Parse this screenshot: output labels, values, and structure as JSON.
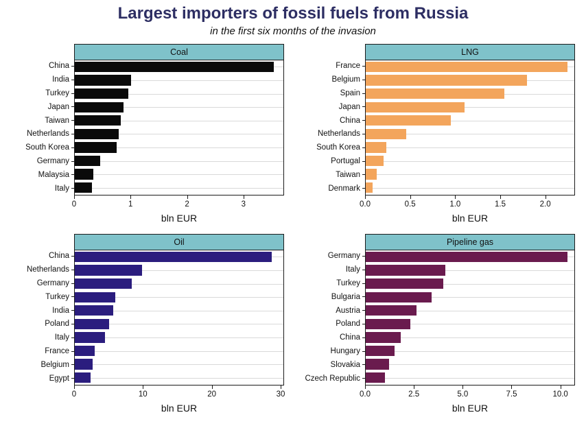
{
  "header": {
    "title": "Largest importers of fossil fuels from Russia",
    "subtitle": "in the first six months of the invasion"
  },
  "colors": {
    "title": "#2d2e63",
    "strip_bg": "#7fc2ca",
    "panel_border": "#1a1a1a",
    "gridline": "#d9d9d9"
  },
  "chart_data": [
    {
      "type": "bar",
      "orientation": "horizontal",
      "title": "Coal",
      "xlabel": "bln EUR",
      "bar_color": "#0a0a0a",
      "categories": [
        "China",
        "India",
        "Turkey",
        "Japan",
        "Taiwan",
        "Netherlands",
        "South Korea",
        "Germany",
        "Malaysia",
        "Italy"
      ],
      "values": [
        3.55,
        1.0,
        0.95,
        0.87,
        0.82,
        0.78,
        0.75,
        0.45,
        0.33,
        0.3
      ],
      "xticks": [
        0,
        1,
        2,
        3
      ],
      "xtick_labels": [
        "0",
        "1",
        "2",
        "3"
      ],
      "xlim": [
        0,
        3.72
      ],
      "grid": "horizontal",
      "legend": "none"
    },
    {
      "type": "bar",
      "orientation": "horizontal",
      "title": "LNG",
      "xlabel": "bln EUR",
      "bar_color": "#f3a55c",
      "categories": [
        "France",
        "Belgium",
        "Spain",
        "Japan",
        "China",
        "Netherlands",
        "South Korea",
        "Portugal",
        "Taiwan",
        "Denmark"
      ],
      "values": [
        2.25,
        1.8,
        1.55,
        1.1,
        0.95,
        0.45,
        0.23,
        0.2,
        0.12,
        0.08
      ],
      "xticks": [
        0,
        0.5,
        1.0,
        1.5,
        2.0
      ],
      "xtick_labels": [
        "0.0",
        "0.5",
        "1.0",
        "1.5",
        "2.0"
      ],
      "xlim": [
        0,
        2.33
      ],
      "grid": "horizontal",
      "legend": "none"
    },
    {
      "type": "bar",
      "orientation": "horizontal",
      "title": "Oil",
      "xlabel": "bln EUR",
      "bar_color": "#2b1d7e",
      "categories": [
        "China",
        "Netherlands",
        "Germany",
        "Turkey",
        "India",
        "Poland",
        "Italy",
        "France",
        "Belgium",
        "Egypt"
      ],
      "values": [
        28.8,
        9.8,
        8.3,
        5.9,
        5.6,
        5.0,
        4.4,
        2.9,
        2.6,
        2.3
      ],
      "xticks": [
        0,
        10,
        20,
        30
      ],
      "xtick_labels": [
        "0",
        "10",
        "20",
        "30"
      ],
      "xlim": [
        0,
        30.5
      ],
      "grid": "horizontal",
      "legend": "none"
    },
    {
      "type": "bar",
      "orientation": "horizontal",
      "title": "Pipeline gas",
      "xlabel": "bln EUR",
      "bar_color": "#6a1b4e",
      "categories": [
        "Germany",
        "Italy",
        "Turkey",
        "Bulgaria",
        "Austria",
        "Poland",
        "China",
        "Hungary",
        "Slovakia",
        "Czech Republic"
      ],
      "values": [
        10.4,
        4.1,
        4.0,
        3.4,
        2.6,
        2.3,
        1.8,
        1.5,
        1.2,
        1.0
      ],
      "xticks": [
        0,
        2.5,
        5.0,
        7.5,
        10.0
      ],
      "xtick_labels": [
        "0.0",
        "2.5",
        "5.0",
        "7.5",
        "10.0"
      ],
      "xlim": [
        0,
        10.75
      ],
      "grid": "horizontal",
      "legend": "none"
    }
  ]
}
